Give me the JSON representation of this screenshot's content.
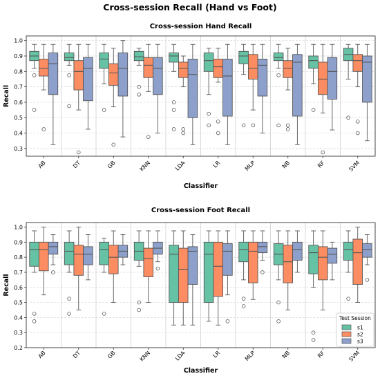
{
  "figure_title": "Cross-session Recall (Hand vs Foot)",
  "colors": {
    "s1": "#66c2a5",
    "s2": "#fc8d62",
    "s3": "#8da0cb"
  },
  "legend": {
    "title": "Test Session",
    "entries": [
      "s1",
      "s2",
      "s3"
    ],
    "placement": "lower-right of bottom panel"
  },
  "chart_data": [
    {
      "type": "boxplot",
      "title": "Cross-session Hand Recall",
      "xlabel": "Classifier",
      "ylabel": "Recall",
      "ylim": [
        0.25,
        1.03
      ],
      "yticks": [
        "0.3",
        "0.4",
        "0.5",
        "0.6",
        "0.7",
        "0.8",
        "0.9",
        "1.0"
      ],
      "grid": true,
      "categories": [
        "AB",
        "DT",
        "GB",
        "KNN",
        "LDA",
        "LR",
        "MLP",
        "NB",
        "RF",
        "SVM"
      ],
      "series": [
        {
          "name": "s1",
          "boxes": [
            {
              "q1": 0.87,
              "median": 0.9,
              "q3": 0.93,
              "whislo": 0.82,
              "whishi": 0.975,
              "fliers": [
                0.775,
                0.55
              ]
            },
            {
              "q1": 0.87,
              "median": 0.89,
              "q3": 0.92,
              "whislo": 0.84,
              "whishi": 0.975,
              "fliers": [
                0.775,
                0.575
              ]
            },
            {
              "q1": 0.82,
              "median": 0.88,
              "q3": 0.92,
              "whislo": 0.72,
              "whishi": 0.975,
              "fliers": [
                0.55
              ]
            },
            {
              "q1": 0.87,
              "median": 0.895,
              "q3": 0.93,
              "whislo": 0.84,
              "whishi": 0.95,
              "fliers": [
                0.7,
                0.65
              ]
            },
            {
              "q1": 0.86,
              "median": 0.9,
              "q3": 0.92,
              "whislo": 0.8,
              "whishi": 0.975,
              "fliers": [
                0.6,
                0.55,
                0.425
              ]
            },
            {
              "q1": 0.8,
              "median": 0.87,
              "q3": 0.92,
              "whislo": 0.65,
              "whishi": 0.95,
              "fliers": [
                0.525,
                0.45
              ]
            },
            {
              "q1": 0.85,
              "median": 0.9,
              "q3": 0.93,
              "whislo": 0.78,
              "whishi": 0.975,
              "fliers": [
                0.45
              ]
            },
            {
              "q1": 0.87,
              "median": 0.89,
              "q3": 0.92,
              "whislo": 0.82,
              "whishi": 0.975,
              "fliers": [
                0.775,
                0.45
              ]
            },
            {
              "q1": 0.82,
              "median": 0.87,
              "q3": 0.9,
              "whislo": 0.72,
              "whishi": 0.975,
              "fliers": [
                0.55
              ]
            },
            {
              "q1": 0.87,
              "median": 0.91,
              "q3": 0.95,
              "whislo": 0.75,
              "whishi": 0.975,
              "fliers": [
                0.5
              ]
            }
          ]
        },
        {
          "name": "s2",
          "boxes": [
            {
              "q1": 0.77,
              "median": 0.82,
              "q3": 0.88,
              "whislo": 0.68,
              "whishi": 0.975,
              "fliers": [
                0.425
              ]
            },
            {
              "q1": 0.68,
              "median": 0.8,
              "q3": 0.87,
              "whislo": 0.55,
              "whishi": 0.975,
              "fliers": [
                0.275
              ]
            },
            {
              "q1": 0.71,
              "median": 0.79,
              "q3": 0.85,
              "whislo": 0.57,
              "whishi": 0.95,
              "fliers": [
                0.325
              ]
            },
            {
              "q1": 0.76,
              "median": 0.84,
              "q3": 0.89,
              "whislo": 0.67,
              "whishi": 0.975,
              "fliers": [
                0.375
              ]
            },
            {
              "q1": 0.76,
              "median": 0.82,
              "q3": 0.86,
              "whislo": 0.7,
              "whishi": 0.9,
              "fliers": [
                0.425,
                0.4
              ]
            },
            {
              "q1": 0.76,
              "median": 0.83,
              "q3": 0.88,
              "whislo": 0.73,
              "whishi": 0.95,
              "fliers": [
                0.475,
                0.4
              ]
            },
            {
              "q1": 0.75,
              "median": 0.82,
              "q3": 0.91,
              "whislo": 0.55,
              "whishi": 0.975,
              "fliers": [
                0.45
              ]
            },
            {
              "q1": 0.76,
              "median": 0.82,
              "q3": 0.87,
              "whislo": 0.68,
              "whishi": 0.95,
              "fliers": [
                0.45,
                0.425
              ]
            },
            {
              "q1": 0.65,
              "median": 0.75,
              "q3": 0.86,
              "whislo": 0.53,
              "whishi": 0.975,
              "fliers": [
                0.275
              ]
            },
            {
              "q1": 0.8,
              "median": 0.87,
              "q3": 0.91,
              "whislo": 0.7,
              "whishi": 0.975,
              "fliers": [
                0.475,
                0.4
              ]
            }
          ]
        },
        {
          "name": "s3",
          "boxes": [
            {
              "q1": 0.65,
              "median": 0.85,
              "q3": 0.92,
              "whislo": 0.325,
              "whishi": 0.975,
              "fliers": []
            },
            {
              "q1": 0.61,
              "median": 0.82,
              "q3": 0.89,
              "whislo": 0.425,
              "whishi": 0.975,
              "fliers": []
            },
            {
              "q1": 0.64,
              "median": 0.82,
              "q3": 0.92,
              "whislo": 0.375,
              "whishi": 1.0,
              "fliers": []
            },
            {
              "q1": 0.65,
              "median": 0.82,
              "q3": 0.89,
              "whislo": 0.4,
              "whishi": 0.975,
              "fliers": []
            },
            {
              "q1": 0.5,
              "median": 0.78,
              "q3": 0.88,
              "whislo": 0.325,
              "whishi": 0.975,
              "fliers": []
            },
            {
              "q1": 0.51,
              "median": 0.77,
              "q3": 0.88,
              "whislo": 0.325,
              "whishi": 0.975,
              "fliers": []
            },
            {
              "q1": 0.64,
              "median": 0.84,
              "q3": 0.88,
              "whislo": 0.4,
              "whishi": 0.975,
              "fliers": []
            },
            {
              "q1": 0.51,
              "median": 0.86,
              "q3": 0.91,
              "whislo": 0.325,
              "whishi": 0.975,
              "fliers": []
            },
            {
              "q1": 0.62,
              "median": 0.8,
              "q3": 0.89,
              "whislo": 0.42,
              "whishi": 0.975,
              "fliers": []
            },
            {
              "q1": 0.6,
              "median": 0.86,
              "q3": 0.9,
              "whislo": 0.35,
              "whishi": 0.975,
              "fliers": []
            }
          ]
        }
      ]
    },
    {
      "type": "boxplot",
      "title": "Cross-session Foot Recall",
      "xlabel": "Classifier",
      "ylabel": "Recall",
      "ylim": [
        0.2,
        1.03
      ],
      "yticks": [
        "0.2",
        "0.3",
        "0.4",
        "0.5",
        "0.6",
        "0.7",
        "0.8",
        "0.9",
        "1.0"
      ],
      "grid": true,
      "categories": [
        "AB",
        "DT",
        "GB",
        "KNN",
        "LDA",
        "LR",
        "MLP",
        "NB",
        "RF",
        "SVM"
      ],
      "series": [
        {
          "name": "s1",
          "boxes": [
            {
              "q1": 0.74,
              "median": 0.85,
              "q3": 0.9,
              "whislo": 0.7,
              "whishi": 0.975,
              "fliers": [
                0.425,
                0.375
              ]
            },
            {
              "q1": 0.75,
              "median": 0.84,
              "q3": 0.9,
              "whislo": 0.7,
              "whishi": 0.975,
              "fliers": [
                0.525,
                0.425
              ]
            },
            {
              "q1": 0.75,
              "median": 0.85,
              "q3": 0.9,
              "whislo": 0.7,
              "whishi": 0.925,
              "fliers": [
                0.425
              ]
            },
            {
              "q1": 0.78,
              "median": 0.84,
              "q3": 0.9,
              "whislo": 0.74,
              "whishi": 0.975,
              "fliers": [
                0.5,
                0.45
              ]
            },
            {
              "q1": 0.5,
              "median": 0.82,
              "q3": 0.88,
              "whislo": 0.35,
              "whishi": 0.975,
              "fliers": []
            },
            {
              "q1": 0.5,
              "median": 0.82,
              "q3": 0.9,
              "whislo": 0.375,
              "whishi": 0.975,
              "fliers": []
            },
            {
              "q1": 0.77,
              "median": 0.85,
              "q3": 0.9,
              "whislo": 0.65,
              "whishi": 0.975,
              "fliers": [
                0.525,
                0.475
              ]
            },
            {
              "q1": 0.75,
              "median": 0.82,
              "q3": 0.89,
              "whislo": 0.65,
              "whishi": 0.975,
              "fliers": [
                0.5,
                0.375
              ]
            },
            {
              "q1": 0.69,
              "median": 0.83,
              "q3": 0.88,
              "whislo": 0.6,
              "whishi": 0.975,
              "fliers": [
                0.3,
                0.25
              ]
            },
            {
              "q1": 0.78,
              "median": 0.85,
              "q3": 0.9,
              "whislo": 0.7,
              "whishi": 0.975,
              "fliers": [
                0.525
              ]
            }
          ]
        },
        {
          "name": "s2",
          "boxes": [
            {
              "q1": 0.71,
              "median": 0.85,
              "q3": 0.9,
              "whislo": 0.55,
              "whishi": 1.0,
              "fliers": []
            },
            {
              "q1": 0.68,
              "median": 0.82,
              "q3": 0.88,
              "whislo": 0.45,
              "whishi": 1.0,
              "fliers": []
            },
            {
              "q1": 0.69,
              "median": 0.8,
              "q3": 0.88,
              "whislo": 0.5,
              "whishi": 0.975,
              "fliers": []
            },
            {
              "q1": 0.67,
              "median": 0.79,
              "q3": 0.86,
              "whislo": 0.5,
              "whishi": 0.975,
              "fliers": []
            },
            {
              "q1": 0.5,
              "median": 0.72,
              "q3": 0.86,
              "whislo": 0.35,
              "whishi": 0.975,
              "fliers": []
            },
            {
              "q1": 0.54,
              "median": 0.74,
              "q3": 0.9,
              "whislo": 0.35,
              "whishi": 0.975,
              "fliers": []
            },
            {
              "q1": 0.63,
              "median": 0.84,
              "q3": 0.9,
              "whislo": 0.52,
              "whishi": 0.975,
              "fliers": []
            },
            {
              "q1": 0.63,
              "median": 0.77,
              "q3": 0.88,
              "whislo": 0.45,
              "whishi": 0.975,
              "fliers": []
            },
            {
              "q1": 0.65,
              "median": 0.8,
              "q3": 0.87,
              "whislo": 0.45,
              "whishi": 0.975,
              "fliers": []
            },
            {
              "q1": 0.62,
              "median": 0.83,
              "q3": 0.92,
              "whislo": 0.5,
              "whishi": 1.0,
              "fliers": []
            }
          ]
        },
        {
          "name": "s3",
          "boxes": [
            {
              "q1": 0.82,
              "median": 0.87,
              "q3": 0.9,
              "whislo": 0.75,
              "whishi": 0.95,
              "fliers": [
                0.7
              ]
            },
            {
              "q1": 0.75,
              "median": 0.82,
              "q3": 0.87,
              "whislo": 0.65,
              "whishi": 0.95,
              "fliers": []
            },
            {
              "q1": 0.8,
              "median": 0.84,
              "q3": 0.88,
              "whislo": 0.75,
              "whishi": 0.95,
              "fliers": []
            },
            {
              "q1": 0.82,
              "median": 0.86,
              "q3": 0.9,
              "whislo": 0.77,
              "whishi": 0.975,
              "fliers": [
                0.725
              ]
            },
            {
              "q1": 0.62,
              "median": 0.84,
              "q3": 0.87,
              "whislo": 0.35,
              "whishi": 0.95,
              "fliers": []
            },
            {
              "q1": 0.68,
              "median": 0.84,
              "q3": 0.89,
              "whislo": 0.55,
              "whishi": 0.975,
              "fliers": [
                0.375
              ]
            },
            {
              "q1": 0.83,
              "median": 0.87,
              "q3": 0.9,
              "whislo": 0.78,
              "whishi": 0.975,
              "fliers": [
                0.7
              ]
            },
            {
              "q1": 0.78,
              "median": 0.85,
              "q3": 0.9,
              "whislo": 0.7,
              "whishi": 0.975,
              "fliers": []
            },
            {
              "q1": 0.76,
              "median": 0.82,
              "q3": 0.86,
              "whislo": 0.65,
              "whishi": 0.9,
              "fliers": []
            },
            {
              "q1": 0.8,
              "median": 0.85,
              "q3": 0.89,
              "whislo": 0.75,
              "whishi": 0.95,
              "fliers": [
                0.65
              ]
            }
          ]
        }
      ]
    }
  ]
}
